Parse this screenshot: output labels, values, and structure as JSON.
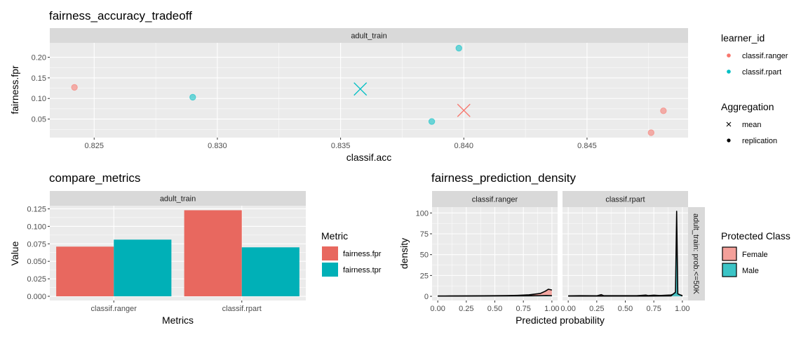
{
  "colors": {
    "ranger": "#F8766D",
    "rpart": "#00BFC4",
    "panel_bg": "#EBEBEB",
    "strip_bg": "#D9D9D9",
    "grid_major": "#FFFFFF"
  },
  "legends": {
    "learner": {
      "title": "learner_id",
      "items": [
        {
          "label": "classif.ranger",
          "color": "#F8766D"
        },
        {
          "label": "classif.rpart",
          "color": "#00BFC4"
        }
      ]
    },
    "aggregation": {
      "title": "Aggregation",
      "items": [
        {
          "label": "mean",
          "shape": "cross"
        },
        {
          "label": "replication",
          "shape": "dot"
        }
      ]
    },
    "metric": {
      "title": "Metric",
      "items": [
        {
          "label": "fairness.fpr",
          "color": "#E8685F"
        },
        {
          "label": "fairness.tpr",
          "color": "#00B0B7"
        }
      ]
    },
    "protected": {
      "title": "Protected Class",
      "items": [
        {
          "label": "Female",
          "color": "#F4A09A"
        },
        {
          "label": "Male",
          "color": "#3BC4C6"
        }
      ]
    }
  },
  "chart_data": [
    {
      "type": "scatter",
      "title": "fairness_accuracy_tradeoff",
      "facet": "adult_train",
      "xlabel": "classif.acc",
      "ylabel": "fairness.fpr",
      "xlim": [
        0.8232,
        0.8491
      ],
      "ylim": [
        0.005,
        0.235
      ],
      "xticks": [
        0.825,
        0.83,
        0.835,
        0.84,
        0.845
      ],
      "xtick_labels": [
        "0.825",
        "0.830",
        "0.835",
        "0.840",
        "0.845"
      ],
      "yticks": [
        0.05,
        0.1,
        0.15,
        0.2
      ],
      "ytick_labels": [
        "0.05",
        "0.10",
        "0.15",
        "0.20"
      ],
      "series": [
        {
          "name": "classif.ranger",
          "replication": [
            {
              "x": 0.8242,
              "y": 0.127
            },
            {
              "x": 0.8481,
              "y": 0.07
            },
            {
              "x": 0.8476,
              "y": 0.017
            }
          ],
          "mean": {
            "x": 0.84,
            "y": 0.071
          }
        },
        {
          "name": "classif.rpart",
          "replication": [
            {
              "x": 0.829,
              "y": 0.103
            },
            {
              "x": 0.8398,
              "y": 0.222
            },
            {
              "x": 0.8387,
              "y": 0.044
            }
          ],
          "mean": {
            "x": 0.8358,
            "y": 0.123
          }
        }
      ],
      "legend": "right"
    },
    {
      "type": "bar",
      "title": "compare_metrics",
      "facet": "adult_train",
      "xlabel": "Metrics",
      "ylabel": "Value",
      "categories": [
        "classif.ranger",
        "classif.rpart"
      ],
      "ylim": [
        -0.006,
        0.1295
      ],
      "yticks": [
        0,
        0.025,
        0.05,
        0.075,
        0.1,
        0.125
      ],
      "ytick_labels": [
        "0.000",
        "0.025",
        "0.050",
        "0.075",
        "0.100",
        "0.125"
      ],
      "series": [
        {
          "name": "fairness.fpr",
          "values": [
            0.071,
            0.123
          ]
        },
        {
          "name": "fairness.tpr",
          "values": [
            0.081,
            0.07
          ]
        }
      ],
      "legend": "right"
    },
    {
      "type": "area",
      "title": "fairness_prediction_density",
      "xlabel": "Predicted probability",
      "ylabel": "density",
      "facets": [
        "classif.ranger",
        "classif.rpart"
      ],
      "row_facet": "adult_train: prob.<=50K",
      "xlim": [
        -0.05,
        1.05
      ],
      "ylim": [
        -5,
        107
      ],
      "xticks": [
        0,
        0.25,
        0.5,
        0.75,
        1
      ],
      "xtick_labels": [
        "0.00",
        "0.25",
        "0.50",
        "0.75",
        "1.00"
      ],
      "yticks": [
        0,
        25,
        50,
        75,
        100
      ],
      "ytick_labels": [
        "0",
        "25",
        "50",
        "75",
        "100"
      ],
      "series": [
        {
          "name": "Female",
          "panels": [
            {
              "x": [
                0,
                0.1,
                0.3,
                0.5,
                0.6,
                0.7,
                0.8,
                0.85,
                0.9,
                0.94,
                0.97,
                1.0
              ],
              "y": [
                0.3,
                0.4,
                0.5,
                0.7,
                0.9,
                1.2,
                1.8,
                2.6,
                3.5,
                6.0,
                8.5,
                7.5
              ]
            },
            {
              "x": [
                0,
                0.1,
                0.25,
                0.29,
                0.31,
                0.4,
                0.6,
                0.68,
                0.7,
                0.75,
                0.8,
                0.9,
                0.93,
                0.95,
                0.97,
                1.0
              ],
              "y": [
                0.5,
                0.8,
                0.6,
                2.0,
                0.8,
                0.8,
                0.8,
                1.5,
                0.9,
                1.4,
                1.0,
                1.6,
                3.0,
                3.5,
                2.0,
                1.0
              ]
            }
          ]
        },
        {
          "name": "Male",
          "panels": [
            {
              "x": [
                0,
                0.2,
                0.4,
                0.6,
                0.8,
                0.9,
                0.95,
                1.0
              ],
              "y": [
                0.3,
                0.3,
                0.4,
                0.5,
                0.6,
                0.8,
                1.0,
                0.8
              ]
            },
            {
              "x": [
                0,
                0.2,
                0.3,
                0.5,
                0.7,
                0.9,
                0.94,
                0.95,
                0.96,
                1.0
              ],
              "y": [
                0.3,
                0.3,
                0.3,
                0.3,
                0.3,
                0.5,
                5.0,
                102,
                3.0,
                0.5
              ]
            }
          ]
        }
      ],
      "legend": "right"
    }
  ]
}
